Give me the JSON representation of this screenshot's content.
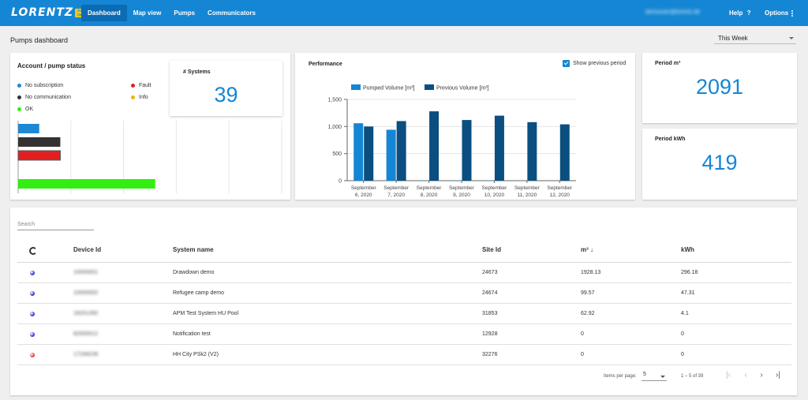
{
  "header": {
    "logo_text": "LORENTZ",
    "logo_badge_top": "PS",
    "logo_badge_bottom": "SM",
    "nav": [
      "Dashboard",
      "Map view",
      "Pumps",
      "Communicators"
    ],
    "user_email": "demouser@lorentz.de",
    "help_label": "Help",
    "help_icon": "?",
    "options_label": "Options"
  },
  "page": {
    "title": "Pumps dashboard",
    "period": "This Week"
  },
  "account": {
    "title": "Account / pump status",
    "legend": [
      {
        "label": "No subscription",
        "color": "#1e88d4"
      },
      {
        "label": "Fault",
        "color": "#e02020"
      },
      {
        "label": "No communication",
        "color": "#333333"
      },
      {
        "label": "Info",
        "color": "#f0b400"
      },
      {
        "label": "OK",
        "color": "#33ee11"
      }
    ],
    "systems_label": "# Systems",
    "systems_value": "39"
  },
  "performance": {
    "title": "Performance",
    "show_previous_label": "Show previous period",
    "show_previous_checked": true
  },
  "stats": {
    "period_m3_label": "Period m³",
    "period_m3_value": "2091",
    "period_kwh_label": "Period kWh",
    "period_kwh_value": "419"
  },
  "chart_data": {
    "type": "bar",
    "categories": [
      "September 6, 2020",
      "September 7, 2020",
      "September 8, 2020",
      "September 9, 2020",
      "September 10, 2020",
      "September 11, 2020",
      "September 12, 2020"
    ],
    "category_lines": [
      [
        "September",
        "6, 2020"
      ],
      [
        "September",
        "7, 2020"
      ],
      [
        "September",
        "8, 2020"
      ],
      [
        "September",
        "9, 2020"
      ],
      [
        "September",
        "10, 2020"
      ],
      [
        "September",
        "11, 2020"
      ],
      [
        "September",
        "12, 2020"
      ]
    ],
    "series": [
      {
        "name": "Pumped Volume [m³]",
        "color": "#1586d4",
        "values": [
          1060,
          940,
          5,
          5,
          5,
          0,
          0
        ]
      },
      {
        "name": "Previous Volume [m³]",
        "color": "#0a4f7f",
        "values": [
          1000,
          1100,
          1280,
          1120,
          1200,
          1080,
          1040
        ]
      }
    ],
    "yticks": [
      "0",
      "500",
      "1,000",
      "1,500"
    ],
    "ytick_values": [
      0,
      500,
      1000,
      1500
    ],
    "ylim": [
      0,
      1500
    ],
    "legend_position": "top-left",
    "grid": true
  },
  "status_chart": {
    "type": "bar",
    "orientation": "horizontal",
    "bars": [
      {
        "name": "No subscription",
        "color": "#1e88d4",
        "value": 4
      },
      {
        "name": "No communication",
        "color": "#333333",
        "value": 8
      },
      {
        "name": "Fault",
        "color": "#e02020",
        "value": 8
      },
      {
        "name": "OK",
        "color": "#33ee11",
        "value": 26
      }
    ],
    "xlim": [
      0,
      50
    ]
  },
  "table": {
    "search_label": "Search",
    "columns": [
      "Device Id",
      "System name",
      "Site Id",
      "m³ ↓",
      "kWh"
    ],
    "rows": [
      {
        "status_color": "#3333dd",
        "device_id": "10000001",
        "system_name": "Drawdown demo",
        "site_id": "24673",
        "m3": "1928.13",
        "kwh": "296.18"
      },
      {
        "status_color": "#3333dd",
        "device_id": "10000002",
        "system_name": "Refugee camp demo",
        "site_id": "24674",
        "m3": "99.57",
        "kwh": "47.31"
      },
      {
        "status_color": "#3333dd",
        "device_id": "18201350",
        "system_name": "APM Test System HU Pool",
        "site_id": "31853",
        "m3": "62.92",
        "kwh": "4.1"
      },
      {
        "status_color": "#3333dd",
        "device_id": "82000012",
        "system_name": "Notification test",
        "site_id": "12928",
        "m3": "0",
        "kwh": "0"
      },
      {
        "status_color": "#e03b3b",
        "device_id": "17248239",
        "system_name": "HH City PSk2 (V2)",
        "site_id": "32276",
        "m3": "0",
        "kwh": "0"
      }
    ],
    "items_per_page_label": "Items per page:",
    "items_per_page": "5",
    "range_label": "1 – 5 of 39"
  }
}
